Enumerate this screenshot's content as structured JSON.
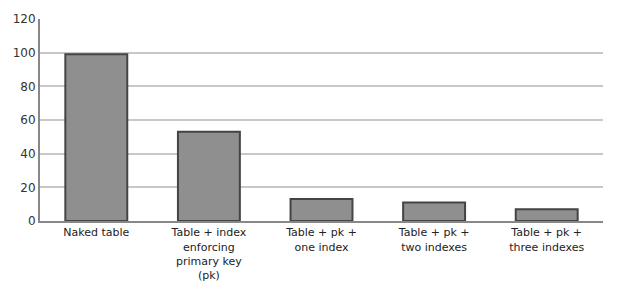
{
  "chart_data": {
    "type": "bar",
    "categories": [
      "Naked table",
      "Table + index enforcing primary key (pk)",
      "Table + pk + one index",
      "Table + pk + two indexes",
      "Table + pk + three indexes"
    ],
    "values": [
      99,
      53,
      13,
      11,
      7
    ],
    "color": "#8f8f8f",
    "ylim": [
      0,
      120
    ],
    "yticks": [
      0,
      20,
      40,
      60,
      80,
      100,
      120
    ],
    "grid": true
  }
}
